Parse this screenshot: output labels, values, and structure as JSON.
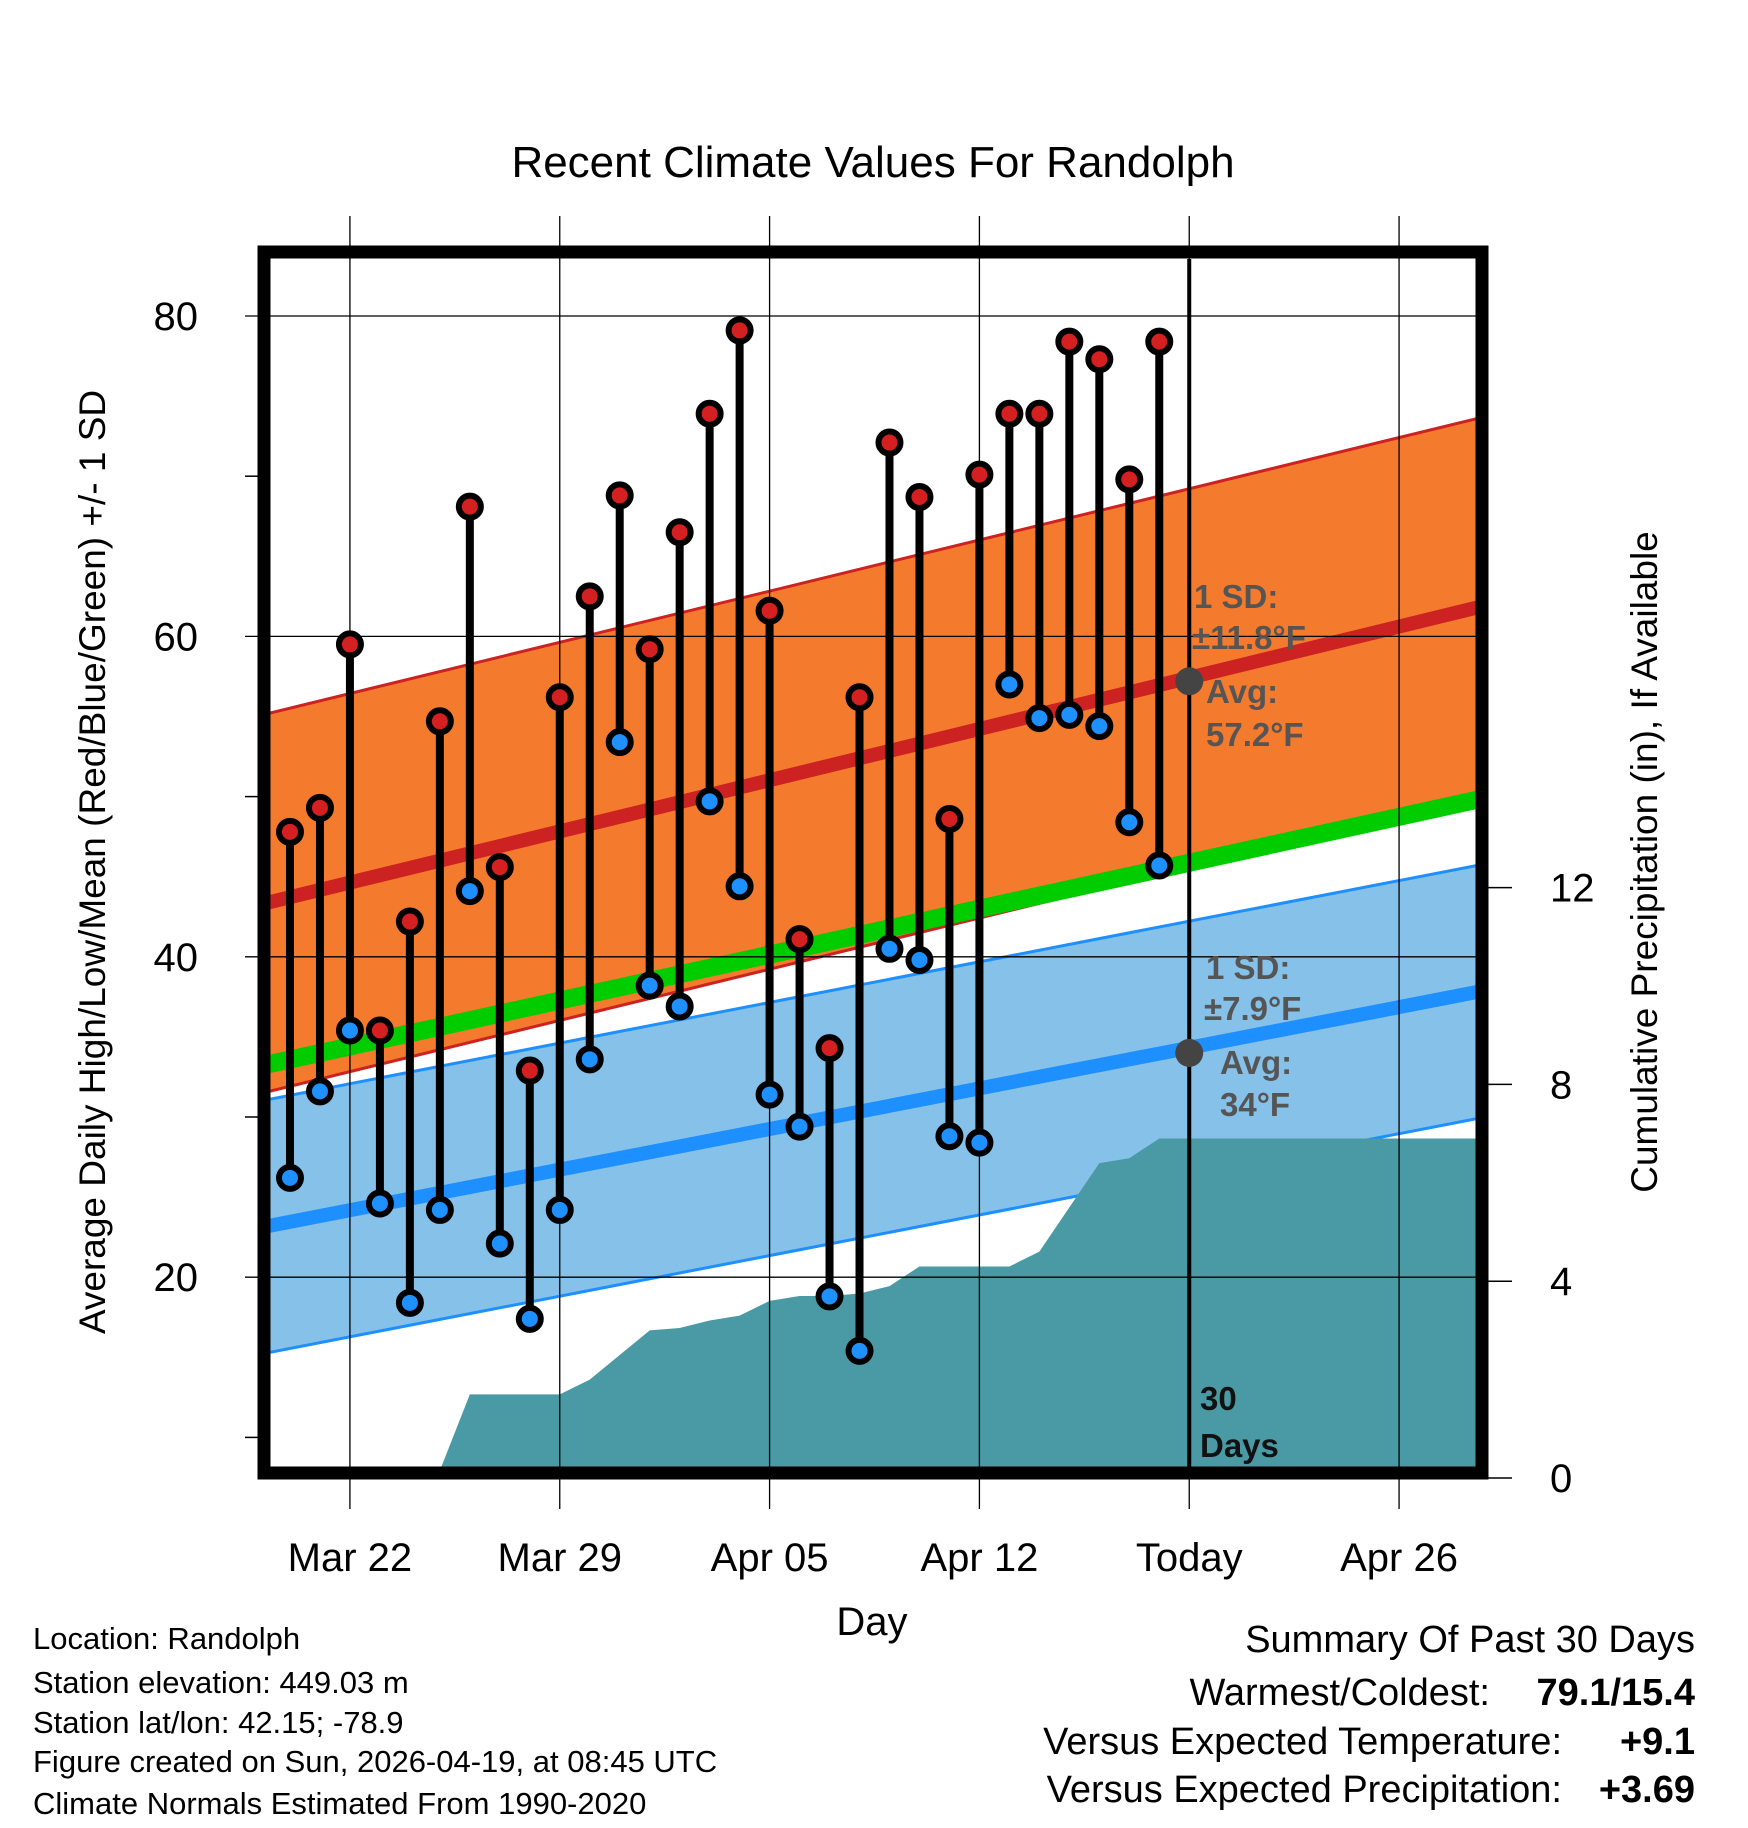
{
  "chart_data": {
    "type": "line",
    "title": "Recent Climate Values For Randolph",
    "xlabel": "Day",
    "ylabel": "Average Daily High/Low/Mean (Red/Blue/Green) +/- 1 SD",
    "y2label": "Cumulative Precipitation (in), If Available",
    "x_units": "days relative to Mar 22",
    "xlim": [
      -2.7,
      37.6
    ],
    "ylim": [
      8.1,
      83.6
    ],
    "y2lim": [
      0,
      15.4
    ],
    "x_ticks": [
      {
        "day": 0,
        "label": "Mar 22"
      },
      {
        "day": 7,
        "label": "Mar 29"
      },
      {
        "day": 14,
        "label": "Apr 05"
      },
      {
        "day": 21,
        "label": "Apr 12"
      },
      {
        "day": 28,
        "label": "Today"
      },
      {
        "day": 35,
        "label": "Apr 26"
      }
    ],
    "y_ticks": [
      20,
      40,
      60,
      80
    ],
    "y_minor_ticks": [
      10,
      30,
      50,
      70
    ],
    "y2_ticks": [
      0,
      4,
      8,
      12
    ],
    "dates": [
      "Mar 20",
      "Mar 21",
      "Mar 22",
      "Mar 23",
      "Mar 24",
      "Mar 25",
      "Mar 26",
      "Mar 27",
      "Mar 28",
      "Mar 29",
      "Mar 30",
      "Mar 31",
      "Apr 01",
      "Apr 02",
      "Apr 03",
      "Apr 04",
      "Apr 05",
      "Apr 06",
      "Apr 07",
      "Apr 08",
      "Apr 09",
      "Apr 10",
      "Apr 11",
      "Apr 12",
      "Apr 13",
      "Apr 14",
      "Apr 15",
      "Apr 16",
      "Apr 17",
      "Apr 18"
    ],
    "first_day": -2,
    "series": [
      {
        "name": "Daily High",
        "color": "#d42020",
        "values": [
          47.8,
          49.3,
          59.5,
          35.4,
          42.2,
          54.7,
          68.1,
          45.6,
          32.9,
          56.2,
          62.5,
          68.8,
          59.2,
          66.5,
          73.9,
          79.1,
          61.6,
          41.1,
          34.3,
          56.2,
          72.1,
          68.7,
          48.6,
          70.1,
          73.9,
          73.9,
          78.4,
          77.3,
          69.8,
          78.4
        ]
      },
      {
        "name": "Daily Low",
        "color": "#1e90ff",
        "values": [
          26.2,
          31.6,
          35.4,
          24.6,
          18.4,
          24.2,
          44.1,
          22.1,
          17.4,
          24.2,
          33.6,
          53.4,
          38.2,
          36.9,
          49.7,
          44.4,
          31.4,
          29.4,
          18.8,
          15.4,
          40.5,
          39.8,
          28.8,
          28.4,
          57.0,
          54.9,
          55.1,
          54.4,
          48.4,
          45.7
        ]
      },
      {
        "name": "Cumulative Precipitation",
        "color": "#4a9aa5",
        "values": [
          0.0,
          0.1,
          0.15,
          0.15,
          0.15,
          0.15,
          1.7,
          1.7,
          1.7,
          1.7,
          2.0,
          2.5,
          3.0,
          3.05,
          3.2,
          3.3,
          3.6,
          3.7,
          3.7,
          3.75,
          3.9,
          4.3,
          4.3,
          4.3,
          4.3,
          4.6,
          5.5,
          6.4,
          6.5,
          6.9
        ]
      }
    ],
    "normals": {
      "high_mean": [
        43.4,
        61.8
      ],
      "high_sd": 11.8,
      "high_color": "#cc2222",
      "high_band": "#f47a2e",
      "low_mean": [
        23.2,
        37.8
      ],
      "low_sd": 7.9,
      "low_color": "#1e8fff",
      "low_band": "#85c1e8",
      "mean_color": "#00cc00"
    },
    "annotations": {
      "high_sd_label": "1 SD:",
      "high_sd_value": "±11.8°F",
      "high_avg_label": "Avg:",
      "high_avg_value": "57.2°F",
      "low_sd_label": "1 SD:",
      "low_sd_value": "±7.9°F",
      "low_avg_label": "Avg:",
      "low_avg_value": "34°F",
      "high_avg": 57.2,
      "low_avg": 34,
      "window_line1": "30",
      "window_line2": "Days"
    }
  },
  "footer": {
    "location": "Location: Randolph",
    "elevation": "Station elevation: 449.03 m",
    "latlon": "Station lat/lon: 42.15; -78.9",
    "created": "Figure created on Sun, 2026-04-19, at 08:45 UTC",
    "normals": "Climate Normals Estimated From 1990-2020"
  },
  "summary": {
    "title": "Summary Of Past 30 Days",
    "warm_cold_label": "Warmest/Coldest:",
    "warm_cold_value": "79.1/15.4",
    "temp_label": "Versus Expected Temperature:",
    "temp_value": "+9.1",
    "temp_color": "#d42020",
    "precip_label": "Versus Expected Precipitation:",
    "precip_value": "+3.69",
    "precip_color": "#22bb22"
  }
}
